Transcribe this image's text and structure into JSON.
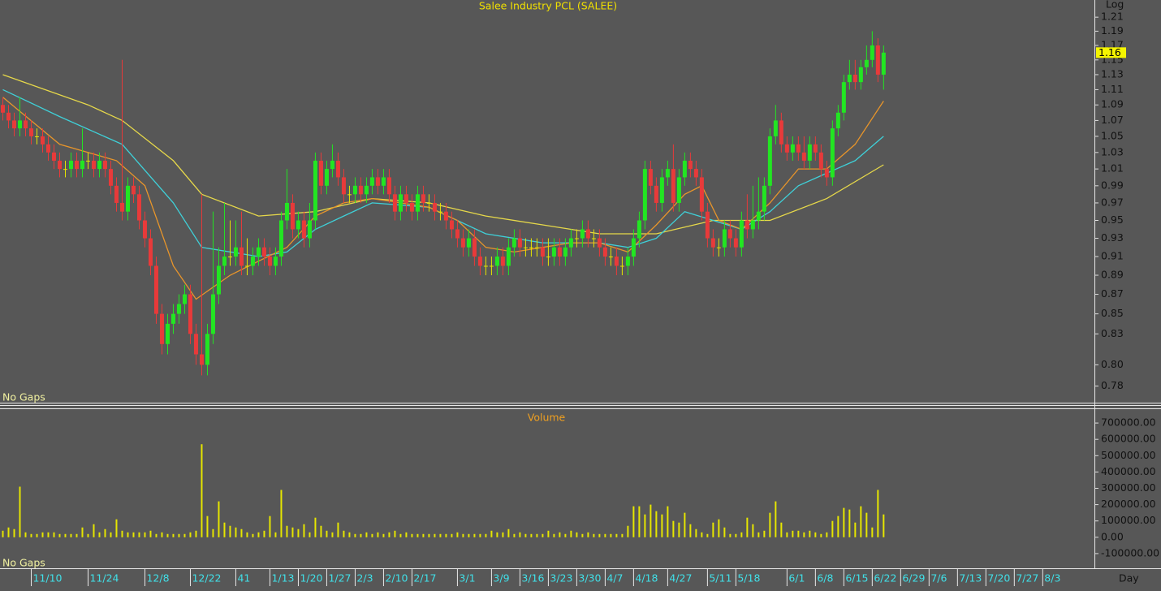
{
  "chart_data": [
    {
      "type": "candlestick",
      "title": "Salee Industry PCL (SALEE)",
      "scale_label": "Log",
      "log_scale": true,
      "note": "No Gaps",
      "up_color": "#22e622",
      "down_color": "#e83a3a",
      "doji_color": "#e6e600",
      "xlim": [
        -0.5,
        192.1
      ],
      "ylim": [
        0.764,
        1.235
      ],
      "yticks": [
        0.78,
        {
          "value": 0.8,
          "label": "0.80"
        },
        0.83,
        0.85,
        0.87,
        0.89,
        0.91,
        0.93,
        0.95,
        0.97,
        0.99,
        1.01,
        1.03,
        1.05,
        1.07,
        1.09,
        1.11,
        1.13,
        1.15,
        1.17,
        1.19,
        1.21
      ],
      "open": [
        1.09,
        1.08,
        1.07,
        1.06,
        1.07,
        1.06,
        1.05,
        1.05,
        1.04,
        1.03,
        1.02,
        1.01,
        1.01,
        1.02,
        1.01,
        1.02,
        1.02,
        1.01,
        1.02,
        1.01,
        0.99,
        0.97,
        0.96,
        0.99,
        0.98,
        0.95,
        0.93,
        0.9,
        0.85,
        0.82,
        0.84,
        0.85,
        0.86,
        0.87,
        0.83,
        0.81,
        0.8,
        0.83,
        0.87,
        0.9,
        0.91,
        0.91,
        0.92,
        0.9,
        0.9,
        0.91,
        0.92,
        0.91,
        0.9,
        0.91,
        0.95,
        0.97,
        0.94,
        0.95,
        0.93,
        0.95,
        1.02,
        0.99,
        1.01,
        1.02,
        1.0,
        0.98,
        0.98,
        0.99,
        0.98,
        0.99,
        1.0,
        0.99,
        1.0,
        0.98,
        0.96,
        0.98,
        0.97,
        0.96,
        0.98,
        0.97,
        0.97,
        0.96,
        0.96,
        0.95,
        0.94,
        0.93,
        0.92,
        0.93,
        0.91,
        0.9,
        0.9,
        0.9,
        0.91,
        0.9,
        0.92,
        0.93,
        0.92,
        0.92,
        0.92,
        0.92,
        0.91,
        0.91,
        0.92,
        0.91,
        0.92,
        0.93,
        0.93,
        0.94,
        0.93,
        0.93,
        0.92,
        0.91,
        0.91,
        0.9,
        0.9,
        0.91,
        0.93,
        0.95,
        1.01,
        0.99,
        0.97,
        1.0,
        1.01,
        0.97,
        1.0,
        1.02,
        1.01,
        1.0,
        0.96,
        0.93,
        0.92,
        0.92,
        0.94,
        0.93,
        0.92,
        0.95,
        0.94,
        0.95,
        0.96,
        0.99,
        1.05,
        1.07,
        1.04,
        1.03,
        1.04,
        1.03,
        1.02,
        1.04,
        1.03,
        1.01,
        1.0,
        1.06,
        1.08,
        1.12,
        1.13,
        1.12,
        1.14,
        1.15,
        1.17,
        1.13
      ],
      "high": [
        1.1,
        1.09,
        1.08,
        1.1,
        1.08,
        1.07,
        1.06,
        1.06,
        1.05,
        1.04,
        1.03,
        1.02,
        1.03,
        1.03,
        1.06,
        1.03,
        1.03,
        1.03,
        1.03,
        1.02,
        1.0,
        1.15,
        1.0,
        1.0,
        0.99,
        0.96,
        0.94,
        0.91,
        0.86,
        0.85,
        0.86,
        0.87,
        0.88,
        0.88,
        0.84,
        0.98,
        0.84,
        0.96,
        0.92,
        0.97,
        0.95,
        0.95,
        0.96,
        0.93,
        0.92,
        0.93,
        0.93,
        0.92,
        0.92,
        0.96,
        1.01,
        0.98,
        0.96,
        0.96,
        0.97,
        1.03,
        1.03,
        1.02,
        1.04,
        1.03,
        1.01,
        0.99,
        1.0,
        1.0,
        1.0,
        1.01,
        1.01,
        1.01,
        1.01,
        0.99,
        0.99,
        0.99,
        0.98,
        0.99,
        0.99,
        0.98,
        0.98,
        0.97,
        0.97,
        0.96,
        0.95,
        0.94,
        0.94,
        0.94,
        0.92,
        0.91,
        0.91,
        0.92,
        0.92,
        0.93,
        0.94,
        0.94,
        0.93,
        0.93,
        0.93,
        0.93,
        0.93,
        0.93,
        0.93,
        0.93,
        0.94,
        0.94,
        0.95,
        0.95,
        0.94,
        0.94,
        0.93,
        0.92,
        0.92,
        0.91,
        0.92,
        0.94,
        0.96,
        1.02,
        1.02,
        1.0,
        1.01,
        1.02,
        1.04,
        1.01,
        1.03,
        1.03,
        1.02,
        1.01,
        0.97,
        0.94,
        0.93,
        0.95,
        0.95,
        0.94,
        0.96,
        0.98,
        0.99,
        1.0,
        1.0,
        1.06,
        1.09,
        1.08,
        1.05,
        1.05,
        1.05,
        1.05,
        1.05,
        1.05,
        1.04,
        1.02,
        1.07,
        1.09,
        1.13,
        1.15,
        1.15,
        1.15,
        1.17,
        1.19,
        1.18,
        1.17
      ],
      "low": [
        1.07,
        1.06,
        1.05,
        1.05,
        1.05,
        1.04,
        1.04,
        1.03,
        1.02,
        1.01,
        1.0,
        1.0,
        1.0,
        1.0,
        1.0,
        1.01,
        1.0,
        1.0,
        1.0,
        0.98,
        0.96,
        0.95,
        0.95,
        0.97,
        0.94,
        0.92,
        0.89,
        0.84,
        0.81,
        0.81,
        0.83,
        0.84,
        0.85,
        0.82,
        0.8,
        0.79,
        0.79,
        0.82,
        0.86,
        0.89,
        0.9,
        0.9,
        0.89,
        0.89,
        0.89,
        0.9,
        0.9,
        0.89,
        0.89,
        0.9,
        0.94,
        0.93,
        0.93,
        0.92,
        0.92,
        0.94,
        0.98,
        0.98,
        1.0,
        0.99,
        0.97,
        0.97,
        0.97,
        0.97,
        0.97,
        0.98,
        0.98,
        0.98,
        0.97,
        0.95,
        0.95,
        0.96,
        0.95,
        0.95,
        0.96,
        0.96,
        0.95,
        0.95,
        0.94,
        0.93,
        0.92,
        0.91,
        0.91,
        0.9,
        0.89,
        0.89,
        0.89,
        0.89,
        0.89,
        0.89,
        0.91,
        0.91,
        0.91,
        0.91,
        0.91,
        0.9,
        0.9,
        0.9,
        0.9,
        0.9,
        0.91,
        0.92,
        0.92,
        0.92,
        0.92,
        0.91,
        0.9,
        0.9,
        0.89,
        0.89,
        0.89,
        0.9,
        0.92,
        0.94,
        0.98,
        0.96,
        0.96,
        0.99,
        0.96,
        0.96,
        0.99,
        1.0,
        0.99,
        0.95,
        0.92,
        0.91,
        0.91,
        0.91,
        0.92,
        0.91,
        0.91,
        0.93,
        0.93,
        0.94,
        0.95,
        0.98,
        1.04,
        1.03,
        1.02,
        1.02,
        1.02,
        1.01,
        1.01,
        1.02,
        1.0,
        0.99,
        0.99,
        1.05,
        1.07,
        1.11,
        1.11,
        1.11,
        1.13,
        1.14,
        1.12,
        1.11
      ],
      "close": [
        1.08,
        1.07,
        1.06,
        1.07,
        1.06,
        1.05,
        1.05,
        1.04,
        1.03,
        1.02,
        1.01,
        1.01,
        1.02,
        1.01,
        1.02,
        1.02,
        1.01,
        1.02,
        1.01,
        0.99,
        0.97,
        0.96,
        0.99,
        0.98,
        0.95,
        0.93,
        0.9,
        0.85,
        0.82,
        0.84,
        0.85,
        0.86,
        0.87,
        0.83,
        0.81,
        0.8,
        0.83,
        0.87,
        0.9,
        0.91,
        0.91,
        0.92,
        0.9,
        0.9,
        0.91,
        0.92,
        0.91,
        0.9,
        0.91,
        0.95,
        0.97,
        0.94,
        0.95,
        0.93,
        0.95,
        1.02,
        0.99,
        1.01,
        1.02,
        1.0,
        0.98,
        0.98,
        0.99,
        0.98,
        0.99,
        1.0,
        0.99,
        1.0,
        0.98,
        0.96,
        0.98,
        0.97,
        0.96,
        0.98,
        0.97,
        0.97,
        0.96,
        0.96,
        0.95,
        0.94,
        0.93,
        0.92,
        0.93,
        0.91,
        0.9,
        0.9,
        0.9,
        0.91,
        0.9,
        0.92,
        0.93,
        0.92,
        0.92,
        0.92,
        0.92,
        0.91,
        0.91,
        0.92,
        0.91,
        0.92,
        0.93,
        0.93,
        0.94,
        0.93,
        0.93,
        0.92,
        0.91,
        0.91,
        0.9,
        0.9,
        0.91,
        0.93,
        0.95,
        1.01,
        0.99,
        0.97,
        1.0,
        1.01,
        0.97,
        1.0,
        1.02,
        1.01,
        1.0,
        0.96,
        0.93,
        0.92,
        0.92,
        0.94,
        0.93,
        0.92,
        0.95,
        0.94,
        0.95,
        0.96,
        0.99,
        1.05,
        1.07,
        1.04,
        1.03,
        1.04,
        1.03,
        1.02,
        1.04,
        1.03,
        1.01,
        1.0,
        1.06,
        1.08,
        1.12,
        1.13,
        1.12,
        1.14,
        1.15,
        1.17,
        1.13,
        1.16
      ],
      "lines": [
        {
          "color": "#e6d84a",
          "x": [
            0,
            15,
            21,
            30,
            35,
            45,
            55,
            65,
            75,
            85,
            95,
            105,
            115,
            125,
            135,
            145,
            155
          ],
          "values": [
            1.13,
            1.09,
            1.07,
            1.02,
            0.98,
            0.955,
            0.96,
            0.975,
            0.97,
            0.955,
            0.945,
            0.935,
            0.935,
            0.95,
            0.95,
            0.975,
            1.015
          ]
        },
        {
          "color": "#3fd0d8",
          "x": [
            0,
            10,
            21,
            30,
            35,
            45,
            50,
            55,
            60,
            65,
            75,
            85,
            95,
            105,
            110,
            115,
            120,
            125,
            130,
            135,
            140,
            145,
            150,
            155
          ],
          "values": [
            1.11,
            1.075,
            1.04,
            0.97,
            0.92,
            0.91,
            0.915,
            0.94,
            0.955,
            0.97,
            0.965,
            0.935,
            0.925,
            0.925,
            0.92,
            0.93,
            0.96,
            0.95,
            0.94,
            0.96,
            0.99,
            1.005,
            1.02,
            1.05
          ]
        },
        {
          "color": "#e8952a",
          "x": [
            0,
            10,
            20,
            25,
            30,
            34,
            40,
            45,
            50,
            55,
            60,
            65,
            70,
            75,
            80,
            85,
            90,
            95,
            100,
            105,
            110,
            115,
            120,
            123,
            126,
            130,
            135,
            140,
            145,
            150,
            155
          ],
          "values": [
            1.1,
            1.04,
            1.02,
            0.99,
            0.9,
            0.865,
            0.89,
            0.905,
            0.92,
            0.955,
            0.97,
            0.975,
            0.97,
            0.965,
            0.95,
            0.92,
            0.915,
            0.92,
            0.925,
            0.925,
            0.915,
            0.945,
            0.98,
            0.99,
            0.95,
            0.94,
            0.97,
            1.01,
            1.01,
            1.04,
            1.095
          ]
        }
      ]
    },
    {
      "type": "bar",
      "title": "Volume",
      "note": "No Gaps",
      "color": "#e6e600",
      "xlabel": "Day",
      "xlim": [
        -0.5,
        192.1
      ],
      "ylim": [
        -190000,
        780000
      ],
      "yticks": [
        {
          "value": -100000,
          "label": "-100000.00"
        },
        {
          "value": 0,
          "label": "0.00"
        },
        {
          "value": 100000,
          "label": "100000.00"
        },
        {
          "value": 200000,
          "label": "200000.00"
        },
        {
          "value": 300000,
          "label": "300000.00"
        },
        {
          "value": 400000,
          "label": "400000.00"
        },
        {
          "value": 500000,
          "label": "500000.00"
        },
        {
          "value": 600000,
          "label": "600000.00"
        },
        {
          "value": 700000,
          "label": "700000.00"
        }
      ],
      "xticks": [
        {
          "value": 5,
          "label": "11/10"
        },
        {
          "value": 15,
          "label": "11/24"
        },
        {
          "value": 25,
          "label": "12/8"
        },
        {
          "value": 33,
          "label": "12/22"
        },
        41,
        {
          "value": 47,
          "label": "1/13"
        },
        {
          "value": 52,
          "label": "1/20"
        },
        {
          "value": 57,
          "label": "1/27"
        },
        {
          "value": 62,
          "label": "2/3"
        },
        {
          "value": 67,
          "label": "2/10"
        },
        {
          "value": 72,
          "label": "2/17"
        },
        {
          "value": 80,
          "label": "3/1"
        },
        {
          "value": 86,
          "label": "3/9"
        },
        {
          "value": 91,
          "label": "3/16"
        },
        {
          "value": 96,
          "label": "3/23"
        },
        {
          "value": 101,
          "label": "3/30"
        },
        {
          "value": 106,
          "label": "4/7"
        },
        {
          "value": 111,
          "label": "4/18"
        },
        {
          "value": 117,
          "label": "4/27"
        },
        {
          "value": 124,
          "label": "5/11"
        },
        {
          "value": 129,
          "label": "5/18"
        },
        {
          "value": 138,
          "label": "6/1"
        },
        {
          "value": 143,
          "label": "6/8"
        },
        {
          "value": 148,
          "label": "6/15"
        },
        {
          "value": 153,
          "label": "6/22"
        },
        {
          "value": 158,
          "label": "6/29"
        },
        {
          "value": 163,
          "label": "7/6"
        },
        {
          "value": 168,
          "label": "7/13"
        },
        {
          "value": 173,
          "label": "7/20"
        },
        {
          "value": 178,
          "label": "7/27"
        },
        {
          "value": 183,
          "label": "8/3"
        }
      ],
      "values": [
        40000,
        60000,
        50000,
        310000,
        30000,
        20000,
        20000,
        30000,
        30000,
        30000,
        20000,
        20000,
        20000,
        20000,
        60000,
        20000,
        80000,
        30000,
        50000,
        30000,
        110000,
        40000,
        30000,
        30000,
        30000,
        30000,
        40000,
        20000,
        30000,
        20000,
        20000,
        20000,
        20000,
        30000,
        40000,
        570000,
        130000,
        50000,
        220000,
        90000,
        70000,
        60000,
        50000,
        30000,
        20000,
        30000,
        40000,
        130000,
        30000,
        290000,
        70000,
        60000,
        50000,
        80000,
        30000,
        120000,
        70000,
        40000,
        30000,
        90000,
        40000,
        30000,
        20000,
        20000,
        30000,
        20000,
        30000,
        20000,
        30000,
        40000,
        20000,
        30000,
        20000,
        20000,
        20000,
        20000,
        20000,
        20000,
        20000,
        20000,
        30000,
        20000,
        20000,
        20000,
        20000,
        20000,
        40000,
        30000,
        30000,
        50000,
        20000,
        30000,
        20000,
        20000,
        20000,
        20000,
        40000,
        20000,
        30000,
        20000,
        40000,
        30000,
        20000,
        30000,
        20000,
        20000,
        20000,
        20000,
        20000,
        20000,
        70000,
        190000,
        190000,
        140000,
        200000,
        160000,
        140000,
        190000,
        100000,
        90000,
        150000,
        80000,
        50000,
        30000,
        20000,
        90000,
        110000,
        60000,
        20000,
        20000,
        30000,
        120000,
        80000,
        30000,
        40000,
        150000,
        220000,
        90000,
        30000,
        40000,
        40000,
        30000,
        40000,
        30000,
        20000,
        30000,
        100000,
        130000,
        180000,
        170000,
        90000,
        190000,
        150000,
        60000,
        290000,
        140000
      ]
    }
  ]
}
